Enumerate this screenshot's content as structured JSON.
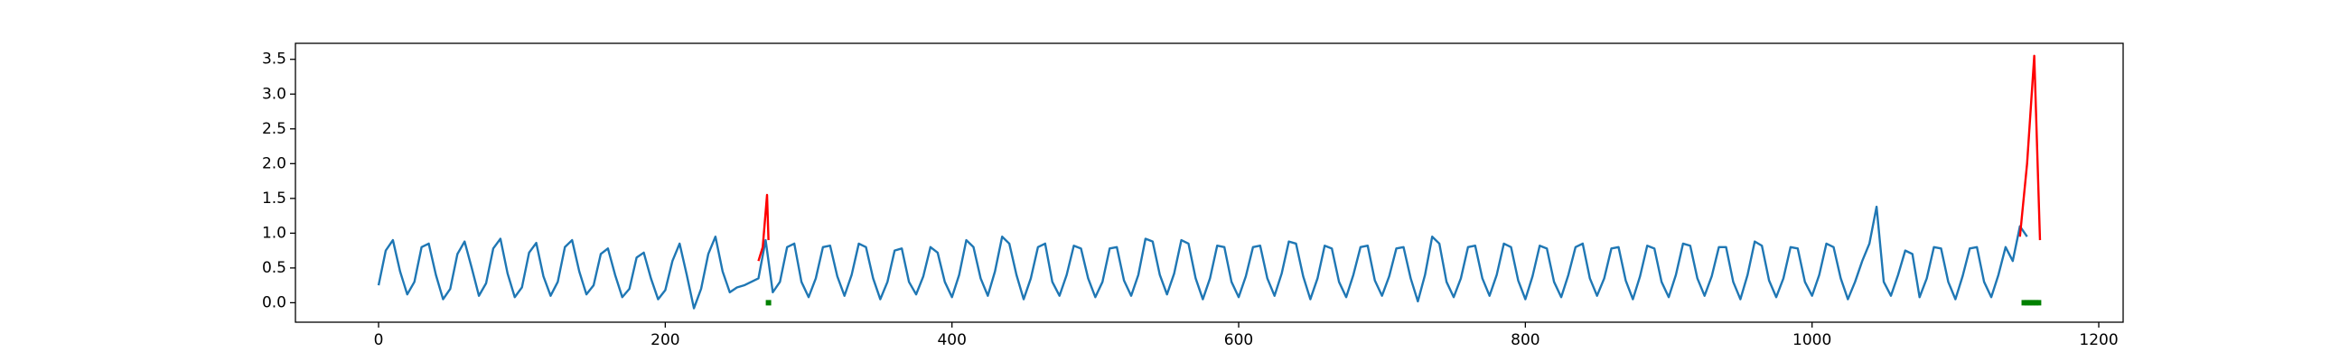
{
  "chart_data": {
    "type": "line",
    "xlim": [
      -58,
      1217
    ],
    "xticks": [
      0,
      200,
      400,
      600,
      800,
      1000,
      1200
    ],
    "ylim": [
      -0.28,
      3.73
    ],
    "yticks": [
      {
        "value": 0,
        "label": "0.0"
      },
      0.5,
      {
        "value": 1,
        "label": "1.0"
      },
      1.5,
      {
        "value": 2,
        "label": "2.0"
      },
      2.5,
      {
        "value": 3,
        "label": "3.0"
      },
      3.5
    ],
    "series": [
      {
        "color": "#1f77b4",
        "style": "line",
        "x": [
          0,
          5,
          10,
          15,
          20,
          25,
          30,
          35,
          40,
          45,
          50,
          55,
          60,
          65,
          70,
          75,
          80,
          85,
          90,
          95,
          100,
          105,
          110,
          115,
          120,
          125,
          130,
          135,
          140,
          145,
          150,
          155,
          160,
          165,
          170,
          175,
          180,
          185,
          190,
          195,
          200,
          205,
          210,
          215,
          220,
          225,
          230,
          235,
          240,
          245,
          250,
          255,
          260,
          265,
          270,
          275,
          280,
          285,
          290,
          295,
          300,
          305,
          310,
          315,
          320,
          325,
          330,
          335,
          340,
          345,
          350,
          355,
          360,
          365,
          370,
          375,
          380,
          385,
          390,
          395,
          400,
          405,
          410,
          415,
          420,
          425,
          430,
          435,
          440,
          445,
          450,
          455,
          460,
          465,
          470,
          475,
          480,
          485,
          490,
          495,
          500,
          505,
          510,
          515,
          520,
          525,
          530,
          535,
          540,
          545,
          550,
          555,
          560,
          565,
          570,
          575,
          580,
          585,
          590,
          595,
          600,
          605,
          610,
          615,
          620,
          625,
          630,
          635,
          640,
          645,
          650,
          655,
          660,
          665,
          670,
          675,
          680,
          685,
          690,
          695,
          700,
          705,
          710,
          715,
          720,
          725,
          730,
          735,
          740,
          745,
          750,
          755,
          760,
          765,
          770,
          775,
          780,
          785,
          790,
          795,
          800,
          805,
          810,
          815,
          820,
          825,
          830,
          835,
          840,
          845,
          850,
          855,
          860,
          865,
          870,
          875,
          880,
          885,
          890,
          895,
          900,
          905,
          910,
          915,
          920,
          925,
          930,
          935,
          940,
          945,
          950,
          955,
          960,
          965,
          970,
          975,
          980,
          985,
          990,
          995,
          1000,
          1005,
          1010,
          1015,
          1020,
          1025,
          1030,
          1035,
          1040,
          1045,
          1050,
          1055,
          1060,
          1065,
          1070,
          1075,
          1080,
          1085,
          1090,
          1095,
          1100,
          1105,
          1110,
          1115,
          1120,
          1125,
          1130,
          1135,
          1140,
          1145,
          1150
        ],
        "values": [
          0.25,
          0.75,
          0.9,
          0.45,
          0.12,
          0.3,
          0.8,
          0.85,
          0.4,
          0.05,
          0.2,
          0.7,
          0.88,
          0.5,
          0.1,
          0.28,
          0.78,
          0.92,
          0.42,
          0.08,
          0.22,
          0.72,
          0.86,
          0.38,
          0.1,
          0.3,
          0.8,
          0.9,
          0.45,
          0.12,
          0.25,
          0.7,
          0.78,
          0.4,
          0.08,
          0.2,
          0.65,
          0.72,
          0.35,
          0.05,
          0.18,
          0.6,
          0.85,
          0.4,
          -0.08,
          0.2,
          0.7,
          0.95,
          0.45,
          0.15,
          0.22,
          0.25,
          0.3,
          0.35,
          0.9,
          0.15,
          0.3,
          0.8,
          0.85,
          0.3,
          0.08,
          0.35,
          0.8,
          0.82,
          0.38,
          0.1,
          0.4,
          0.85,
          0.8,
          0.35,
          0.05,
          0.3,
          0.75,
          0.78,
          0.3,
          0.12,
          0.38,
          0.8,
          0.72,
          0.3,
          0.08,
          0.4,
          0.9,
          0.8,
          0.35,
          0.1,
          0.45,
          0.95,
          0.85,
          0.4,
          0.05,
          0.35,
          0.8,
          0.85,
          0.3,
          0.1,
          0.4,
          0.82,
          0.78,
          0.35,
          0.08,
          0.3,
          0.78,
          0.8,
          0.32,
          0.1,
          0.4,
          0.92,
          0.88,
          0.4,
          0.12,
          0.42,
          0.9,
          0.85,
          0.35,
          0.05,
          0.35,
          0.82,
          0.8,
          0.3,
          0.08,
          0.38,
          0.8,
          0.82,
          0.35,
          0.1,
          0.42,
          0.88,
          0.85,
          0.38,
          0.05,
          0.35,
          0.82,
          0.78,
          0.3,
          0.08,
          0.4,
          0.8,
          0.82,
          0.32,
          0.1,
          0.38,
          0.78,
          0.8,
          0.35,
          0.02,
          0.4,
          0.95,
          0.85,
          0.3,
          0.08,
          0.35,
          0.8,
          0.82,
          0.35,
          0.1,
          0.4,
          0.85,
          0.8,
          0.32,
          0.05,
          0.38,
          0.82,
          0.78,
          0.3,
          0.08,
          0.4,
          0.8,
          0.85,
          0.35,
          0.1,
          0.35,
          0.78,
          0.8,
          0.32,
          0.05,
          0.38,
          0.82,
          0.78,
          0.3,
          0.08,
          0.4,
          0.85,
          0.82,
          0.35,
          0.1,
          0.38,
          0.8,
          0.8,
          0.3,
          0.05,
          0.4,
          0.88,
          0.82,
          0.32,
          0.08,
          0.35,
          0.8,
          0.78,
          0.3,
          0.1,
          0.4,
          0.85,
          0.8,
          0.35,
          0.05,
          0.3,
          0.6,
          0.85,
          1.38,
          0.3,
          0.1,
          0.4,
          0.75,
          0.7,
          0.08,
          0.35,
          0.8,
          0.78,
          0.3,
          0.05,
          0.38,
          0.78,
          0.8,
          0.3,
          0.08,
          0.4,
          0.8,
          0.6,
          1.1,
          0.95
        ]
      },
      {
        "color": "red",
        "style": "line",
        "x": [
          265,
          268,
          271,
          272,
          null,
          1145,
          1150,
          1155,
          1159
        ],
        "values": [
          0.6,
          0.8,
          1.55,
          0.9,
          null,
          0.95,
          2.0,
          3.55,
          0.9
        ]
      },
      {
        "color": "green",
        "style": "markers",
        "x": [
          272,
          1148,
          1150,
          1152,
          1154,
          1156,
          1158
        ],
        "values": [
          0,
          0,
          0,
          0,
          0,
          0,
          0
        ]
      }
    ]
  }
}
